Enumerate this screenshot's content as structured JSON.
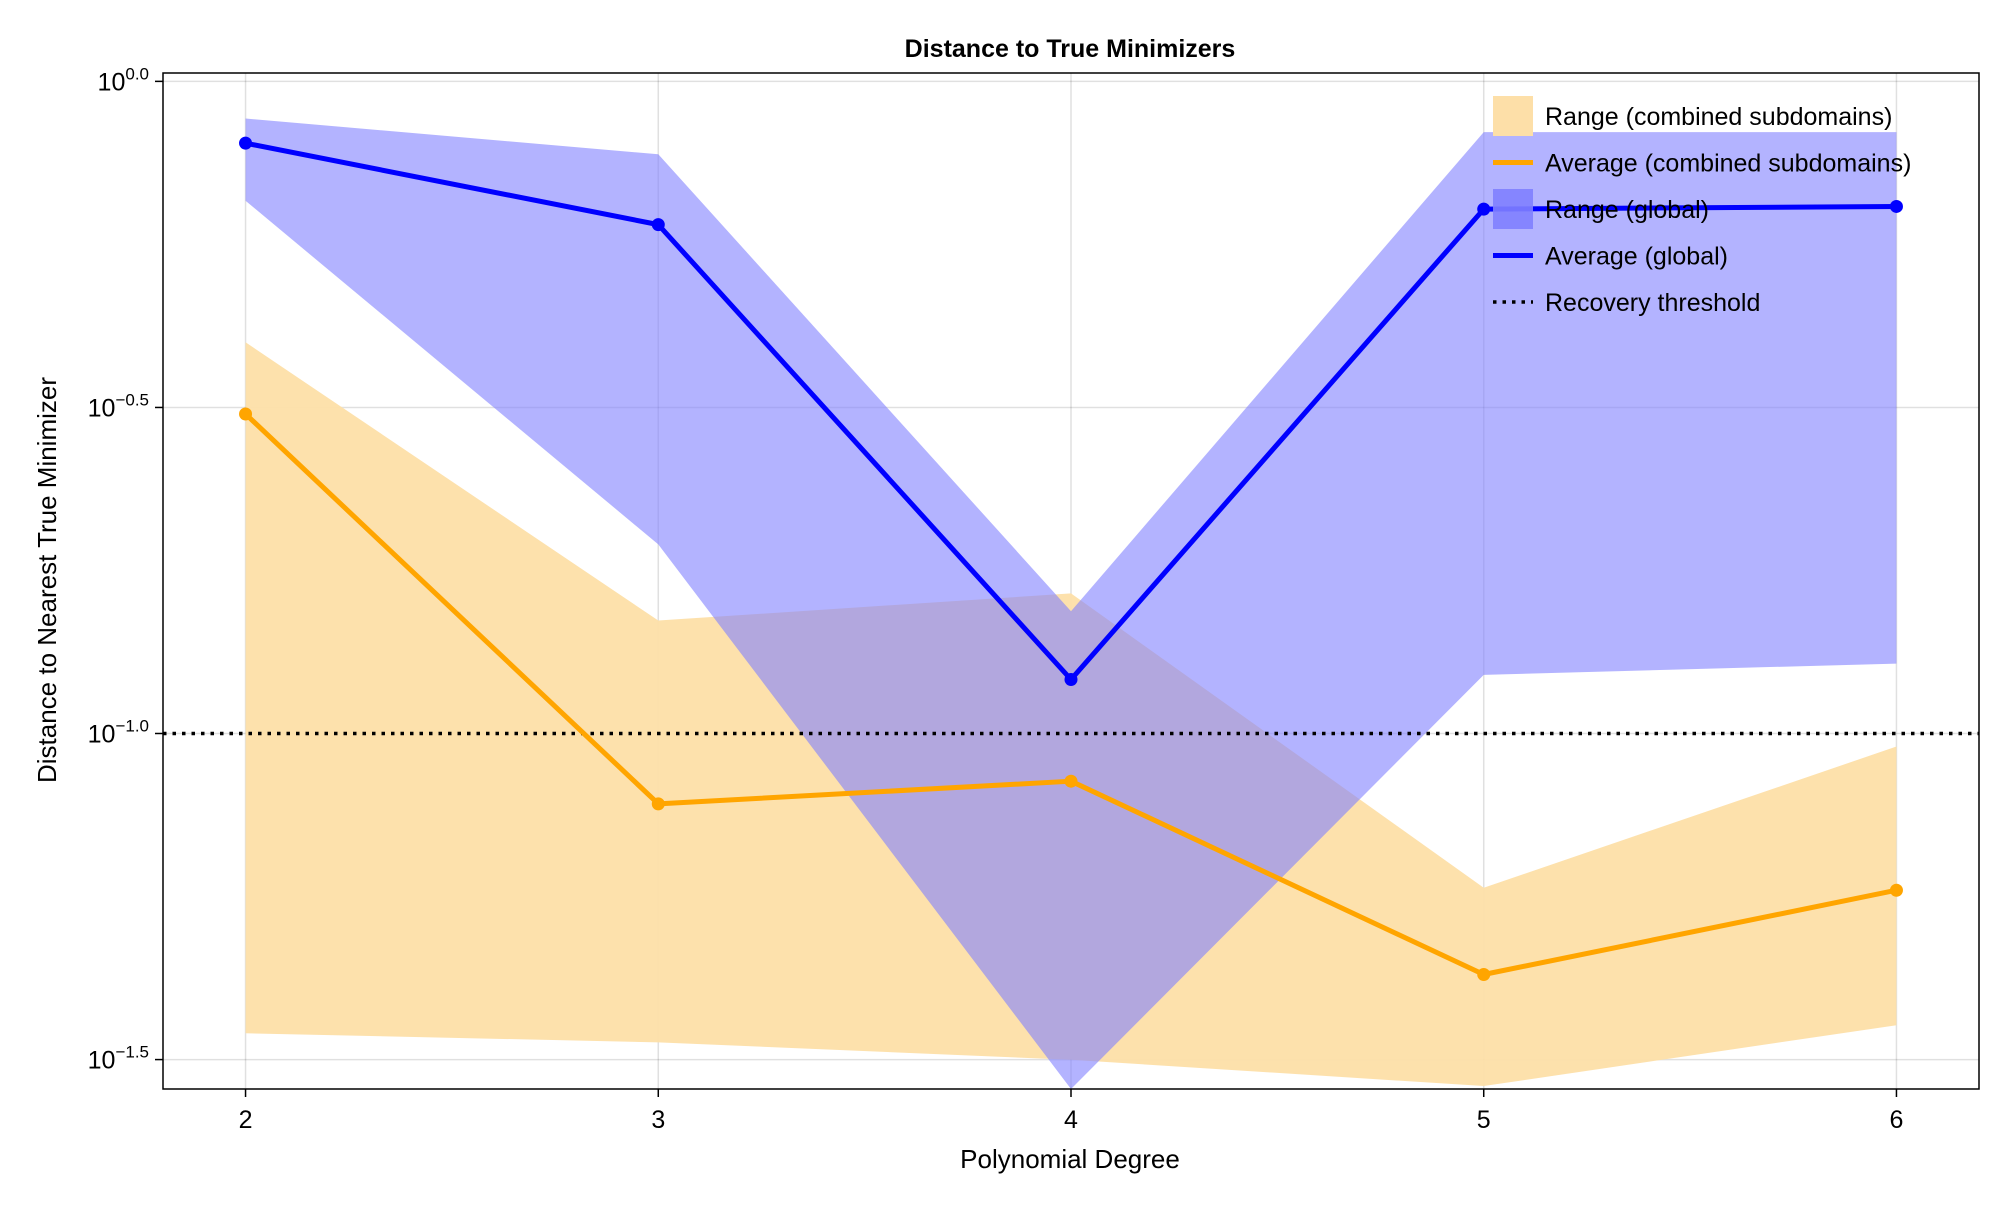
{
  "chart_data": {
    "type": "line",
    "title": "Distance to True Minimizers",
    "xlabel": "Polynomial Degree",
    "ylabel": "Distance to Nearest True Minimizer",
    "x": [
      2,
      3,
      4,
      5,
      6
    ],
    "x_tick_labels": [
      "2",
      "3",
      "4",
      "5",
      "6"
    ],
    "xlim": [
      1.8,
      6.2
    ],
    "yscale": "log10",
    "ylim": [
      0.0285,
      1.03
    ],
    "y_ticks": [
      {
        "value": 1.0,
        "base": "10",
        "exp": "0.0"
      },
      {
        "value": 0.3162,
        "base": "10",
        "exp": "−0.5"
      },
      {
        "value": 0.1,
        "base": "10",
        "exp": "−1.0"
      },
      {
        "value": 0.03162,
        "base": "10",
        "exp": "−1.5"
      }
    ],
    "grid": true,
    "legend_position": "top-right",
    "series": [
      {
        "name": "Range (combined subdomains)",
        "kind": "band",
        "color": "#fddfa8",
        "lower": [
          0.0347,
          0.0336,
          0.0316,
          0.0288,
          0.0357
        ],
        "upper": [
          0.398,
          0.149,
          0.164,
          0.058,
          0.0955
        ]
      },
      {
        "name": "Average (combined subdomains)",
        "kind": "line",
        "color": "#ffa500",
        "values": [
          0.309,
          0.078,
          0.0845,
          0.0427,
          0.0575
        ]
      },
      {
        "name": "Range (global)",
        "kind": "band",
        "color": "#8080ff",
        "lower": [
          0.656,
          0.195,
          0.0285,
          0.123,
          0.128
        ],
        "upper": [
          0.877,
          0.773,
          0.154,
          0.836,
          0.836
        ]
      },
      {
        "name": "Average (global)",
        "kind": "line",
        "color": "#0000ff",
        "values": [
          0.804,
          0.603,
          0.121,
          0.637,
          0.643
        ]
      },
      {
        "name": "Recovery threshold",
        "kind": "hline",
        "color": "#000000",
        "value": 0.1
      }
    ]
  }
}
